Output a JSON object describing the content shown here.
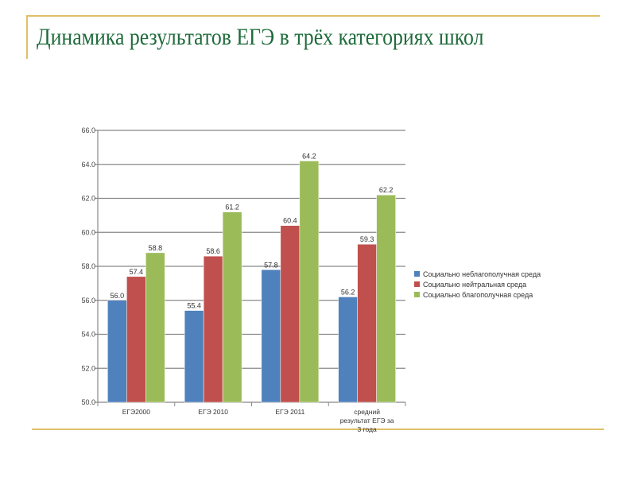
{
  "title": "Динамика результатов ЕГЭ в трёх категориях школ",
  "chart_data": {
    "type": "bar",
    "title": "",
    "xlabel": "",
    "ylabel": "",
    "ylim": [
      50,
      66
    ],
    "yticks": [
      "50.0",
      "52.0",
      "54.0",
      "56.0",
      "58.0",
      "60.0",
      "62.0",
      "64.0",
      "66.0"
    ],
    "categories": [
      [
        "ЕГЭ2000"
      ],
      [
        "ЕГЭ 2010"
      ],
      [
        "ЕГЭ 2011"
      ],
      [
        "средний",
        "результат ЕГЭ за",
        "3 года"
      ]
    ],
    "series": [
      {
        "name": "Социально неблагополучная среда",
        "color": "#4f81bd",
        "values": [
          56.0,
          55.4,
          57.8,
          56.2
        ],
        "labels": [
          "56.0",
          "55.4",
          "57.8",
          "56.2"
        ]
      },
      {
        "name": "Социально нейтральная среда",
        "color": "#c0504d",
        "values": [
          57.4,
          58.6,
          60.4,
          59.3
        ],
        "labels": [
          "57.4",
          "58.6",
          "60.4",
          "59.3"
        ]
      },
      {
        "name": "Социально благополучная среда",
        "color": "#9bbb59",
        "values": [
          58.8,
          61.2,
          64.2,
          62.2
        ],
        "labels": [
          "58.8",
          "61.2",
          "64.2",
          "62.2"
        ]
      }
    ],
    "grid": true,
    "legend": "right"
  }
}
